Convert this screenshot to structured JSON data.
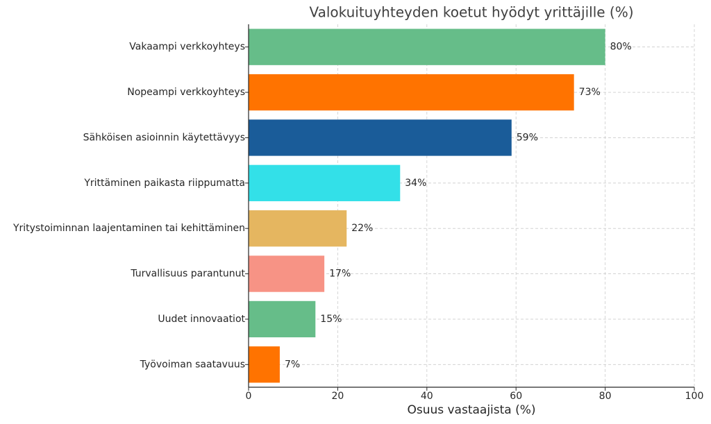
{
  "chart_data": {
    "type": "barh",
    "title": "Valokuituyhteyden koetut hyödyt yrittäjille (%)",
    "x_label": "Osuus vastaajista (%)",
    "categories": [
      "Vakaampi verkkoyhteys",
      "Nopeampi verkkoyhteys",
      "Sähköisen asioinnin käytettävyys",
      "Yrittäminen paikasta riippumatta",
      "Yritystoiminnan laajentaminen tai kehittäminen",
      "Turvallisuus parantunut",
      "Uudet innovaatiot",
      "Työvoiman saatavuus"
    ],
    "values": [
      80,
      73,
      59,
      34,
      22,
      17,
      15,
      7
    ],
    "value_labels": [
      "80%",
      "73%",
      "59%",
      "34%",
      "22%",
      "17%",
      "15%",
      "7%"
    ],
    "colors": [
      "#66bd89",
      "#ff7300",
      "#1a5c99",
      "#33e0e8",
      "#e5b660",
      "#f79385",
      "#66bd89",
      "#ff7300"
    ],
    "xlim": [
      0,
      100
    ],
    "xticks": [
      0,
      20,
      40,
      60,
      80,
      100
    ],
    "grid": true
  }
}
